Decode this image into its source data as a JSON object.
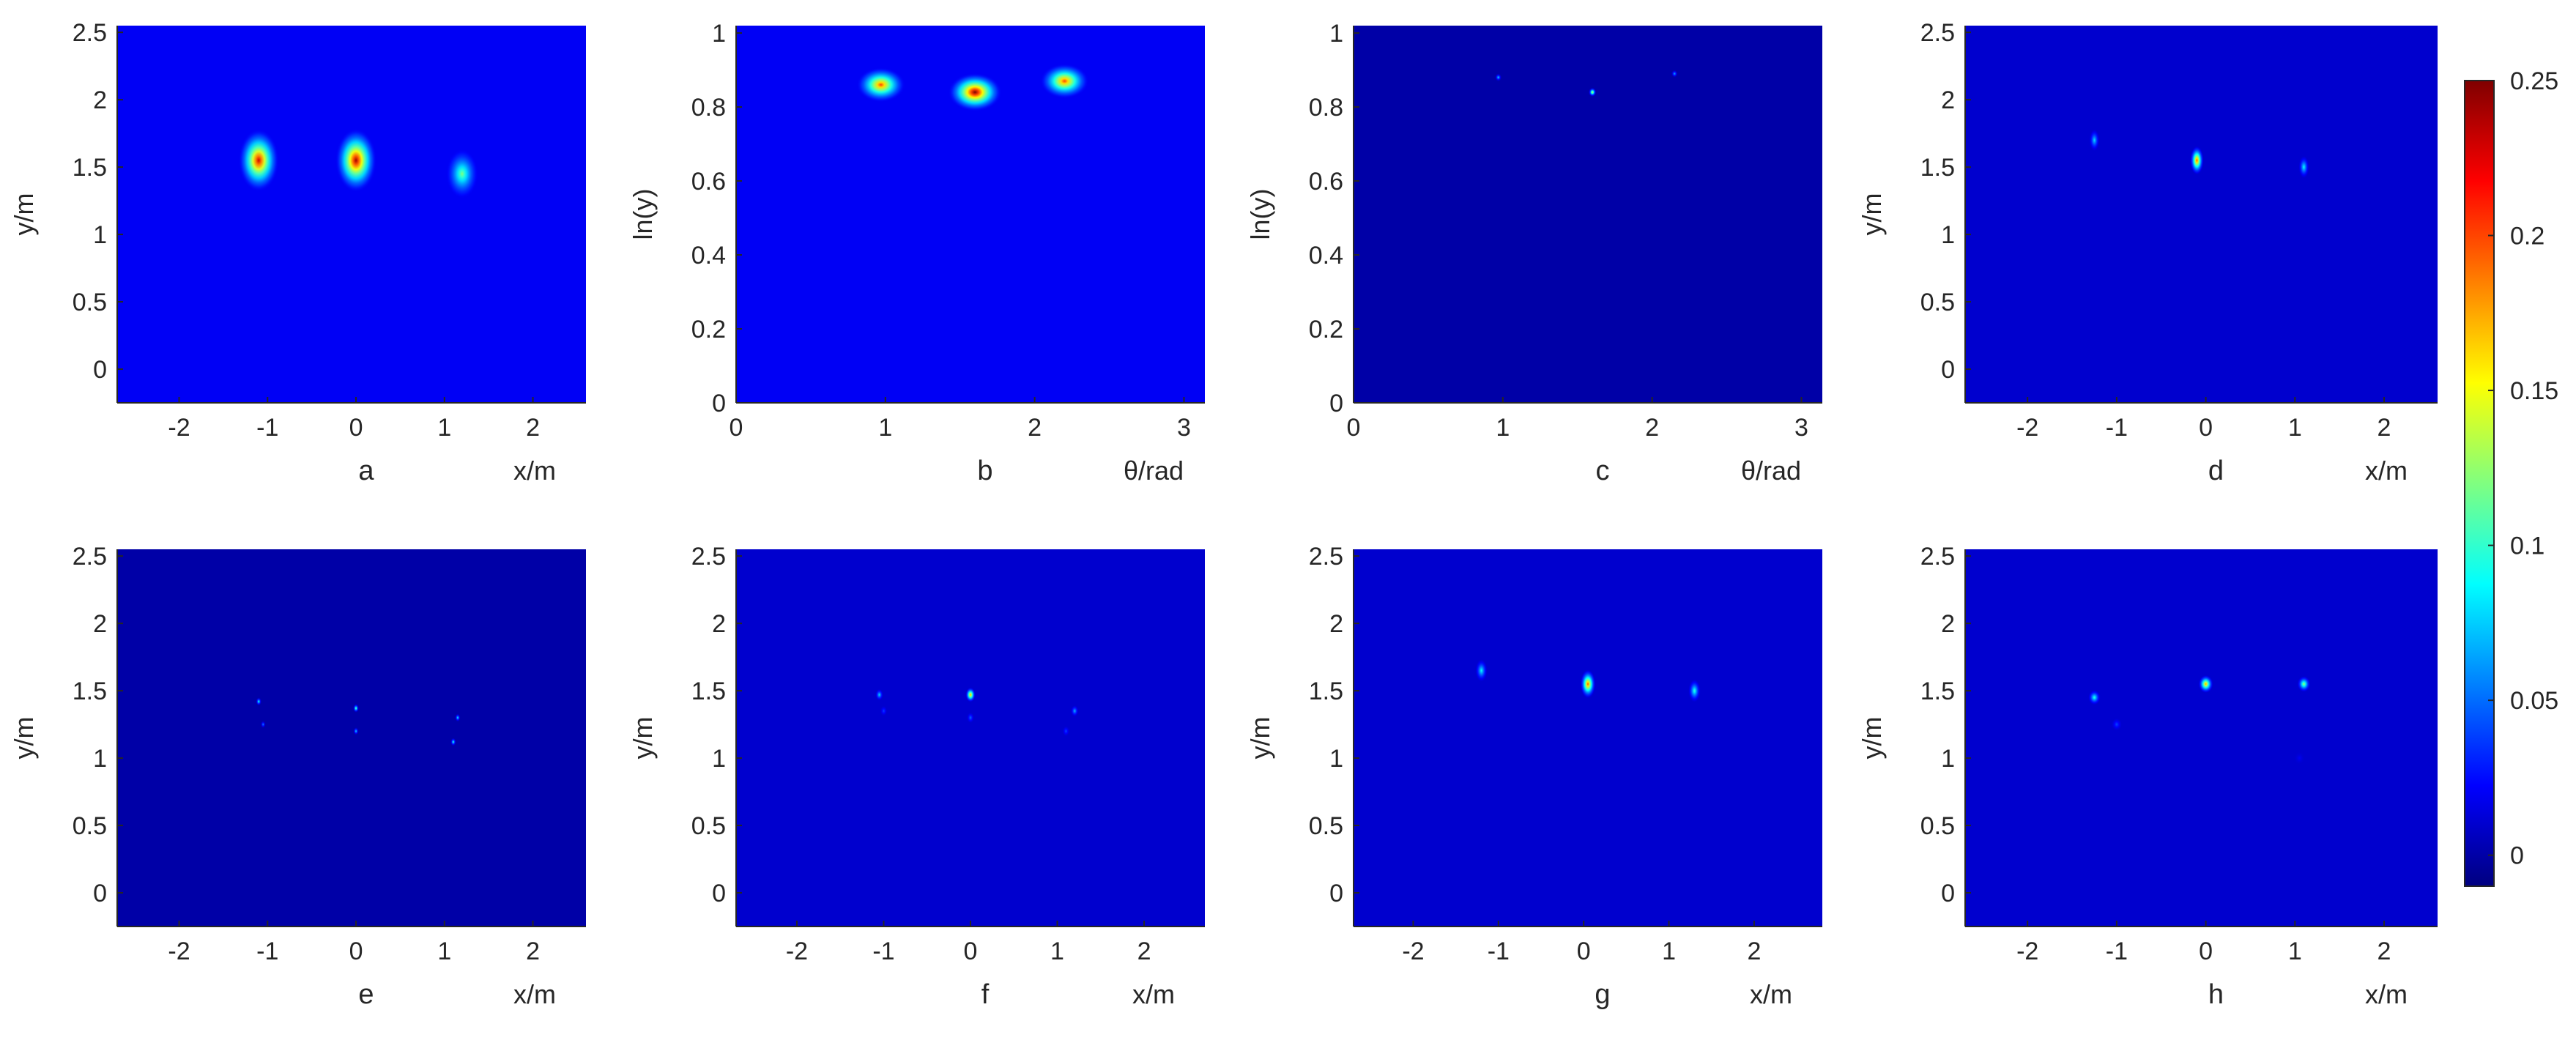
{
  "chart_data": [
    {
      "panel": "a",
      "type": "heatmap",
      "title": "",
      "panel_label": "a",
      "xlabel": "x/m",
      "ylabel": "y/m",
      "xlim": [
        -2.7,
        2.6
      ],
      "ylim": [
        -0.25,
        2.55
      ],
      "xticks": [
        -2,
        -1,
        0,
        1,
        2
      ],
      "xtick_labels": [
        "-2",
        "-1",
        "0",
        "1",
        "2"
      ],
      "yticks": [
        0,
        0.5,
        1,
        1.5,
        2,
        2.5
      ],
      "ytick_labels": [
        "0",
        "0.5",
        "1",
        "1.5",
        "2",
        "2.5"
      ],
      "background_value": 0.02,
      "peaks": [
        {
          "x": -1.1,
          "y": 1.55,
          "value": 0.23
        },
        {
          "x": 0.0,
          "y": 1.55,
          "value": 0.24
        },
        {
          "x": 1.2,
          "y": 1.45,
          "value": 0.12
        }
      ]
    },
    {
      "panel": "b",
      "type": "heatmap",
      "title": "",
      "panel_label": "b",
      "xlabel": "θ/rad",
      "ylabel": "ln(y)",
      "xlim": [
        0,
        3.14
      ],
      "ylim": [
        0,
        1.02
      ],
      "xticks": [
        0,
        1,
        2,
        3
      ],
      "xtick_labels": [
        "0",
        "1",
        "2",
        "3"
      ],
      "yticks": [
        0,
        0.2,
        0.4,
        0.6,
        0.8,
        1
      ],
      "ytick_labels": [
        "0",
        "0.2",
        "0.4",
        "0.6",
        "0.8",
        "1"
      ],
      "background_value": 0.02,
      "peaks": [
        {
          "x": 0.97,
          "y": 0.86,
          "value": 0.2
        },
        {
          "x": 1.6,
          "y": 0.84,
          "value": 0.25
        },
        {
          "x": 2.2,
          "y": 0.87,
          "value": 0.2
        }
      ]
    },
    {
      "panel": "c",
      "type": "heatmap",
      "title": "",
      "panel_label": "c",
      "xlabel": "θ/rad",
      "ylabel": "ln(y)",
      "xlim": [
        0,
        3.14
      ],
      "ylim": [
        0,
        1.02
      ],
      "xticks": [
        0,
        1,
        2,
        3
      ],
      "xtick_labels": [
        "0",
        "1",
        "2",
        "3"
      ],
      "yticks": [
        0,
        0.2,
        0.4,
        0.6,
        0.8,
        1
      ],
      "ytick_labels": [
        "0",
        "0.2",
        "0.4",
        "0.6",
        "0.8",
        "1"
      ],
      "background_value": 0.0,
      "peaks": [
        {
          "x": 0.97,
          "y": 0.88,
          "value": 0.08
        },
        {
          "x": 1.6,
          "y": 0.84,
          "value": 0.15
        },
        {
          "x": 2.15,
          "y": 0.89,
          "value": 0.07
        }
      ]
    },
    {
      "panel": "d",
      "type": "heatmap",
      "title": "",
      "panel_label": "d",
      "xlabel": "x/m",
      "ylabel": "y/m",
      "xlim": [
        -2.7,
        2.6
      ],
      "ylim": [
        -0.25,
        2.55
      ],
      "xticks": [
        -2,
        -1,
        0,
        1,
        2
      ],
      "xtick_labels": [
        "-2",
        "-1",
        "0",
        "1",
        "2"
      ],
      "yticks": [
        0,
        0.5,
        1,
        1.5,
        2,
        2.5
      ],
      "ytick_labels": [
        "0",
        "0.5",
        "1",
        "1.5",
        "2",
        "2.5"
      ],
      "background_value": 0.01,
      "peaks": [
        {
          "x": -1.25,
          "y": 1.7,
          "value": 0.08
        },
        {
          "x": -0.1,
          "y": 1.55,
          "value": 0.2
        },
        {
          "x": 1.1,
          "y": 1.5,
          "value": 0.09
        }
      ]
    },
    {
      "panel": "e",
      "type": "heatmap",
      "title": "",
      "panel_label": "e",
      "xlabel": "x/m",
      "ylabel": "y/m",
      "xlim": [
        -2.7,
        2.6
      ],
      "ylim": [
        -0.25,
        2.55
      ],
      "xticks": [
        -2,
        -1,
        0,
        1,
        2
      ],
      "xtick_labels": [
        "-2",
        "-1",
        "0",
        "1",
        "2"
      ],
      "yticks": [
        0,
        0.5,
        1,
        1.5,
        2,
        2.5
      ],
      "ytick_labels": [
        "0",
        "0.5",
        "1",
        "1.5",
        "2",
        "2.5"
      ],
      "background_value": 0.0,
      "peaks": [
        {
          "x": -1.1,
          "y": 1.42,
          "value": 0.1
        },
        {
          "x": -1.05,
          "y": 1.25,
          "value": 0.06
        },
        {
          "x": 0.0,
          "y": 1.37,
          "value": 0.12
        },
        {
          "x": 0.0,
          "y": 1.2,
          "value": 0.08
        },
        {
          "x": 1.15,
          "y": 1.3,
          "value": 0.09
        },
        {
          "x": 1.1,
          "y": 1.12,
          "value": 0.1
        }
      ]
    },
    {
      "panel": "f",
      "type": "heatmap",
      "title": "",
      "panel_label": "f",
      "xlabel": "x/m",
      "ylabel": "y/m",
      "xlim": [
        -2.7,
        2.7
      ],
      "ylim": [
        -0.25,
        2.55
      ],
      "xticks": [
        -2,
        -1,
        0,
        1,
        2
      ],
      "xtick_labels": [
        "-2",
        "-1",
        "0",
        "1",
        "2"
      ],
      "yticks": [
        0,
        0.5,
        1,
        1.5,
        2,
        2.5
      ],
      "ytick_labels": [
        "0",
        "0.5",
        "1",
        "1.5",
        "2",
        "2.5"
      ],
      "background_value": 0.01,
      "peaks": [
        {
          "x": -1.05,
          "y": 1.47,
          "value": 0.08
        },
        {
          "x": -1.0,
          "y": 1.35,
          "value": 0.04
        },
        {
          "x": 0.0,
          "y": 1.47,
          "value": 0.18
        },
        {
          "x": 0.0,
          "y": 1.3,
          "value": 0.05
        },
        {
          "x": 1.2,
          "y": 1.35,
          "value": 0.07
        },
        {
          "x": 1.1,
          "y": 1.2,
          "value": 0.04
        }
      ]
    },
    {
      "panel": "g",
      "type": "heatmap",
      "title": "",
      "panel_label": "g",
      "xlabel": "x/m",
      "ylabel": "y/m",
      "xlim": [
        -2.7,
        2.8
      ],
      "ylim": [
        -0.25,
        2.55
      ],
      "xticks": [
        -2,
        -1,
        0,
        1,
        2
      ],
      "xtick_labels": [
        "-2",
        "-1",
        "0",
        "1",
        "2"
      ],
      "yticks": [
        0,
        0.5,
        1,
        1.5,
        2,
        2.5
      ],
      "ytick_labels": [
        "0",
        "0.5",
        "1",
        "1.5",
        "2",
        "2.5"
      ],
      "background_value": 0.01,
      "peaks": [
        {
          "x": -1.2,
          "y": 1.65,
          "value": 0.09
        },
        {
          "x": 0.05,
          "y": 1.55,
          "value": 0.2
        },
        {
          "x": 1.3,
          "y": 1.5,
          "value": 0.1
        }
      ]
    },
    {
      "panel": "h",
      "type": "heatmap",
      "title": "",
      "panel_label": "h",
      "xlabel": "x/m",
      "ylabel": "y/m",
      "xlim": [
        -2.7,
        2.6
      ],
      "ylim": [
        -0.25,
        2.55
      ],
      "xticks": [
        -2,
        -1,
        0,
        1,
        2
      ],
      "xtick_labels": [
        "-2",
        "-1",
        "0",
        "1",
        "2"
      ],
      "yticks": [
        0,
        0.5,
        1,
        1.5,
        2,
        2.5
      ],
      "ytick_labels": [
        "0",
        "0.5",
        "1",
        "1.5",
        "2",
        "2.5"
      ],
      "background_value": 0.01,
      "peaks": [
        {
          "x": -1.25,
          "y": 1.45,
          "value": 0.1
        },
        {
          "x": -1.0,
          "y": 1.25,
          "value": 0.04
        },
        {
          "x": 0.0,
          "y": 1.55,
          "value": 0.18
        },
        {
          "x": 1.1,
          "y": 1.55,
          "value": 0.13
        },
        {
          "x": 1.05,
          "y": 1.0,
          "value": 0.02
        }
      ]
    }
  ],
  "colorbar": {
    "colormap": "jet",
    "limits": [
      -0.01,
      0.25
    ],
    "ticks": [
      0,
      0.05,
      0.1,
      0.15,
      0.2,
      0.25
    ],
    "tick_labels": [
      "0",
      "0.05",
      "0.1",
      "0.15",
      "0.2",
      "0.25"
    ]
  }
}
